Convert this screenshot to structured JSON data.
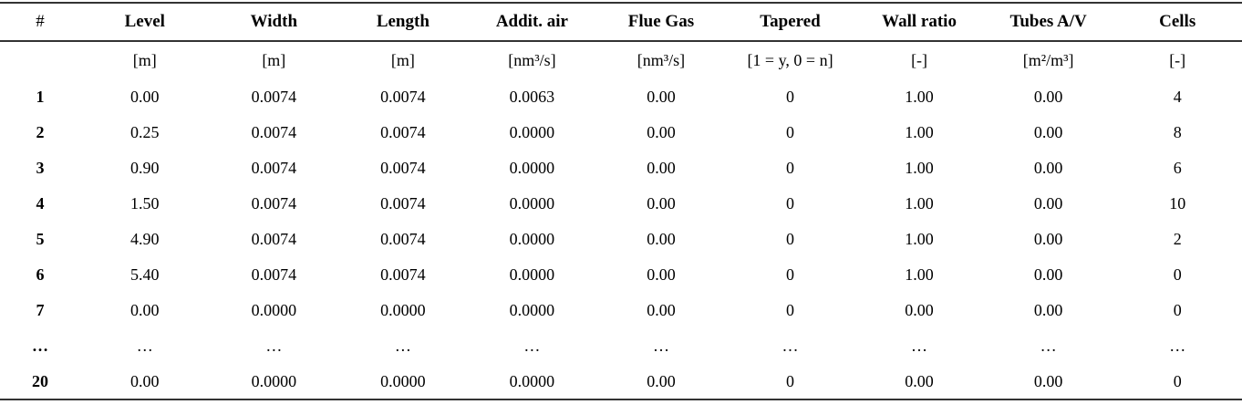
{
  "table": {
    "colors": {
      "text": "#000000",
      "rule": "#333333",
      "background": "#ffffff"
    },
    "columns": [
      {
        "label": "#",
        "unit": ""
      },
      {
        "label": "Level",
        "unit": "[m]"
      },
      {
        "label": "Width",
        "unit": "[m]"
      },
      {
        "label": "Length",
        "unit": "[m]"
      },
      {
        "label": "Addit. air",
        "unit": "[nm³/s]"
      },
      {
        "label": "Flue Gas",
        "unit": "[nm³/s]"
      },
      {
        "label": "Tapered",
        "unit": "[1 = y, 0 = n]"
      },
      {
        "label": "Wall ratio",
        "unit": "[-]"
      },
      {
        "label": "Tubes A/V",
        "unit": "[m²/m³]"
      },
      {
        "label": "Cells",
        "unit": "[-]"
      }
    ],
    "rows": [
      [
        "1",
        "0.00",
        "0.0074",
        "0.0074",
        "0.0063",
        "0.00",
        "0",
        "1.00",
        "0.00",
        "4"
      ],
      [
        "2",
        "0.25",
        "0.0074",
        "0.0074",
        "0.0000",
        "0.00",
        "0",
        "1.00",
        "0.00",
        "8"
      ],
      [
        "3",
        "0.90",
        "0.0074",
        "0.0074",
        "0.0000",
        "0.00",
        "0",
        "1.00",
        "0.00",
        "6"
      ],
      [
        "4",
        "1.50",
        "0.0074",
        "0.0074",
        "0.0000",
        "0.00",
        "0",
        "1.00",
        "0.00",
        "10"
      ],
      [
        "5",
        "4.90",
        "0.0074",
        "0.0074",
        "0.0000",
        "0.00",
        "0",
        "1.00",
        "0.00",
        "2"
      ],
      [
        "6",
        "5.40",
        "0.0074",
        "0.0074",
        "0.0000",
        "0.00",
        "0",
        "1.00",
        "0.00",
        "0"
      ],
      [
        "7",
        "0.00",
        "0.0000",
        "0.0000",
        "0.0000",
        "0.00",
        "0",
        "0.00",
        "0.00",
        "0"
      ],
      [
        "…",
        "…",
        "…",
        "…",
        "…",
        "…",
        "…",
        "…",
        "…",
        "…"
      ],
      [
        "20",
        "0.00",
        "0.0000",
        "0.0000",
        "0.0000",
        "0.00",
        "0",
        "0.00",
        "0.00",
        "0"
      ]
    ]
  }
}
